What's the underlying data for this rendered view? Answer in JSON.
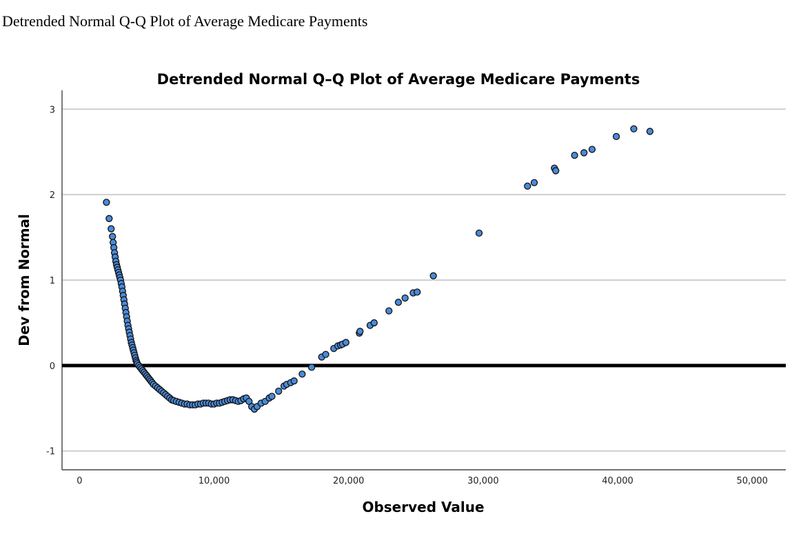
{
  "page_caption": "Detrended Normal Q-Q Plot of Average Medicare Payments",
  "chart_data": {
    "type": "scatter",
    "title": "Detrended Normal Q–Q Plot of Average Medicare Payments",
    "xlabel": "Observed Value",
    "ylabel": "Dev from Normal",
    "xlim": [
      -1300,
      52500
    ],
    "ylim": [
      -1.22,
      3.22
    ],
    "xticks": [
      0,
      10000,
      20000,
      30000,
      40000,
      50000
    ],
    "xtick_labels": [
      "0",
      "10,000",
      "20,000",
      "30,000",
      "40,000",
      "50,000"
    ],
    "yticks": [
      -1,
      0,
      1,
      2,
      3
    ],
    "ytick_labels": [
      "-1",
      "0",
      "1",
      "2",
      "3"
    ],
    "reference_line_y": 0,
    "gridlines": "horizontal",
    "point_color": "#4a8ad8",
    "points": [
      [
        2000,
        1.91
      ],
      [
        2200,
        1.72
      ],
      [
        2350,
        1.6
      ],
      [
        2450,
        1.51
      ],
      [
        2500,
        1.44
      ],
      [
        2550,
        1.38
      ],
      [
        2600,
        1.32
      ],
      [
        2650,
        1.27
      ],
      [
        2700,
        1.22
      ],
      [
        2750,
        1.18
      ],
      [
        2800,
        1.15
      ],
      [
        2850,
        1.12
      ],
      [
        2900,
        1.09
      ],
      [
        2950,
        1.06
      ],
      [
        3000,
        1.03
      ],
      [
        3050,
        1.0
      ],
      [
        3100,
        0.96
      ],
      [
        3150,
        0.92
      ],
      [
        3200,
        0.87
      ],
      [
        3250,
        0.82
      ],
      [
        3300,
        0.77
      ],
      [
        3350,
        0.72
      ],
      [
        3400,
        0.67
      ],
      [
        3450,
        0.62
      ],
      [
        3500,
        0.57
      ],
      [
        3550,
        0.52
      ],
      [
        3600,
        0.47
      ],
      [
        3650,
        0.43
      ],
      [
        3700,
        0.39
      ],
      [
        3750,
        0.35
      ],
      [
        3800,
        0.31
      ],
      [
        3850,
        0.27
      ],
      [
        3900,
        0.24
      ],
      [
        3950,
        0.21
      ],
      [
        4000,
        0.18
      ],
      [
        4050,
        0.15
      ],
      [
        4100,
        0.12
      ],
      [
        4150,
        0.09
      ],
      [
        4200,
        0.06
      ],
      [
        4250,
        0.04
      ],
      [
        4300,
        0.02
      ],
      [
        4400,
        0.0
      ],
      [
        4500,
        -0.02
      ],
      [
        4600,
        -0.04
      ],
      [
        4700,
        -0.06
      ],
      [
        4800,
        -0.08
      ],
      [
        4900,
        -0.1
      ],
      [
        5000,
        -0.12
      ],
      [
        5100,
        -0.14
      ],
      [
        5200,
        -0.16
      ],
      [
        5300,
        -0.18
      ],
      [
        5400,
        -0.2
      ],
      [
        5500,
        -0.22
      ],
      [
        5650,
        -0.24
      ],
      [
        5800,
        -0.26
      ],
      [
        5950,
        -0.28
      ],
      [
        6100,
        -0.3
      ],
      [
        6250,
        -0.32
      ],
      [
        6400,
        -0.34
      ],
      [
        6550,
        -0.36
      ],
      [
        6700,
        -0.38
      ],
      [
        6850,
        -0.4
      ],
      [
        7000,
        -0.41
      ],
      [
        7200,
        -0.42
      ],
      [
        7400,
        -0.43
      ],
      [
        7600,
        -0.44
      ],
      [
        7800,
        -0.45
      ],
      [
        8000,
        -0.45
      ],
      [
        8200,
        -0.46
      ],
      [
        8400,
        -0.46
      ],
      [
        8600,
        -0.46
      ],
      [
        8800,
        -0.45
      ],
      [
        9000,
        -0.45
      ],
      [
        9200,
        -0.44
      ],
      [
        9400,
        -0.44
      ],
      [
        9600,
        -0.44
      ],
      [
        9800,
        -0.45
      ],
      [
        10000,
        -0.45
      ],
      [
        10200,
        -0.44
      ],
      [
        10400,
        -0.44
      ],
      [
        10600,
        -0.43
      ],
      [
        10800,
        -0.42
      ],
      [
        11000,
        -0.41
      ],
      [
        11200,
        -0.4
      ],
      [
        11400,
        -0.4
      ],
      [
        11600,
        -0.41
      ],
      [
        11800,
        -0.42
      ],
      [
        12000,
        -0.41
      ],
      [
        12200,
        -0.39
      ],
      [
        12400,
        -0.38
      ],
      [
        12600,
        -0.42
      ],
      [
        12800,
        -0.48
      ],
      [
        13000,
        -0.51
      ],
      [
        13200,
        -0.48
      ],
      [
        13500,
        -0.44
      ],
      [
        13800,
        -0.42
      ],
      [
        14100,
        -0.38
      ],
      [
        14300,
        -0.36
      ],
      [
        14800,
        -0.3
      ],
      [
        15200,
        -0.24
      ],
      [
        15400,
        -0.22
      ],
      [
        15700,
        -0.2
      ],
      [
        15950,
        -0.18
      ],
      [
        16550,
        -0.1
      ],
      [
        17250,
        -0.02
      ],
      [
        18000,
        0.1
      ],
      [
        18300,
        0.13
      ],
      [
        18900,
        0.2
      ],
      [
        19200,
        0.23
      ],
      [
        19400,
        0.24
      ],
      [
        19550,
        0.25
      ],
      [
        19800,
        0.27
      ],
      [
        20800,
        0.38
      ],
      [
        20850,
        0.4
      ],
      [
        21600,
        0.47
      ],
      [
        21900,
        0.5
      ],
      [
        23000,
        0.64
      ],
      [
        23700,
        0.74
      ],
      [
        24200,
        0.79
      ],
      [
        24800,
        0.85
      ],
      [
        25100,
        0.86
      ],
      [
        26300,
        1.05
      ],
      [
        29700,
        1.55
      ],
      [
        33300,
        2.1
      ],
      [
        33800,
        2.14
      ],
      [
        35300,
        2.31
      ],
      [
        35400,
        2.28
      ],
      [
        36800,
        2.46
      ],
      [
        37500,
        2.49
      ],
      [
        38100,
        2.53
      ],
      [
        39900,
        2.68
      ],
      [
        41200,
        2.77
      ],
      [
        42400,
        2.74
      ]
    ]
  }
}
